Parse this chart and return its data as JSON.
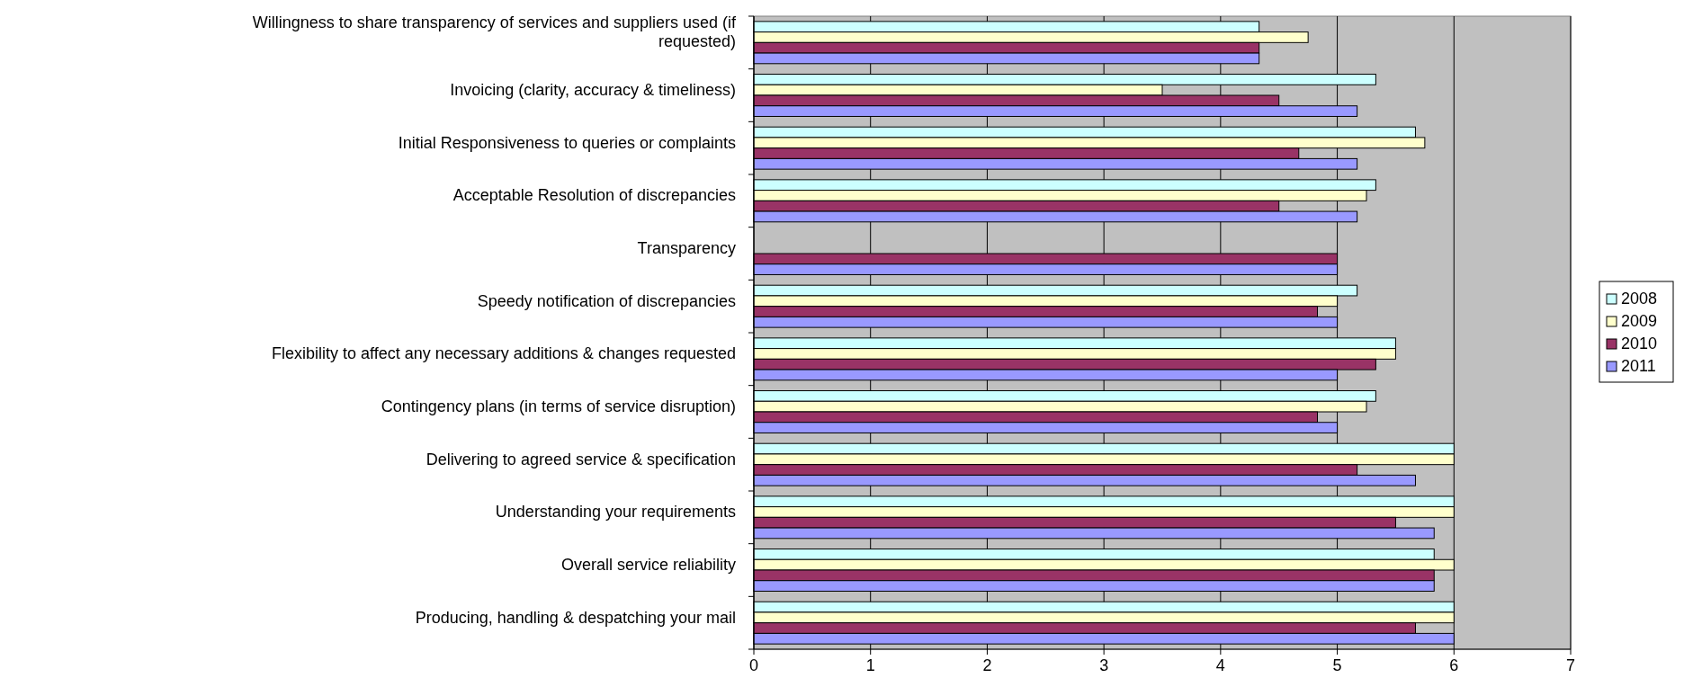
{
  "chart_data": {
    "type": "bar",
    "orientation": "horizontal",
    "categories": [
      "Willingness to share transparency of services and suppliers used (if requested)",
      "Invoicing (clarity, accuracy & timeliness)",
      "Initial Responsiveness to queries or complaints",
      "Acceptable Resolution of discrepancies",
      "Transparency",
      "Speedy notification of discrepancies",
      "Flexibility to affect any necessary additions & changes requested",
      "Contingency plans (in terms of service disruption)",
      "Delivering to agreed service & specification",
      "Understanding your requirements",
      "Overall service reliability",
      "Producing, handling & despatching  your mail"
    ],
    "series": [
      {
        "name": "2008",
        "color": "#ccffff",
        "values": [
          4.33,
          5.33,
          5.67,
          5.33,
          null,
          5.17,
          5.5,
          5.33,
          6,
          6,
          5.83,
          6
        ]
      },
      {
        "name": "2009",
        "color": "#ffffcc",
        "values": [
          4.75,
          3.5,
          5.75,
          5.25,
          null,
          5,
          5.5,
          5.25,
          6,
          6,
          6,
          6
        ]
      },
      {
        "name": "2010",
        "color": "#993366",
        "values": [
          4.33,
          4.5,
          4.67,
          4.5,
          5,
          4.83,
          5.33,
          4.83,
          5.17,
          5.5,
          5.83,
          5.67
        ]
      },
      {
        "name": "2011",
        "color": "#9999ff",
        "values": [
          4.33,
          5.17,
          5.17,
          5.17,
          5,
          5,
          5,
          5,
          5.67,
          5.83,
          5.83,
          6
        ]
      }
    ],
    "xlim": [
      0,
      7
    ],
    "xticks": [
      0,
      1,
      2,
      3,
      4,
      5,
      6,
      7
    ],
    "grid": "x",
    "legend": "right"
  }
}
